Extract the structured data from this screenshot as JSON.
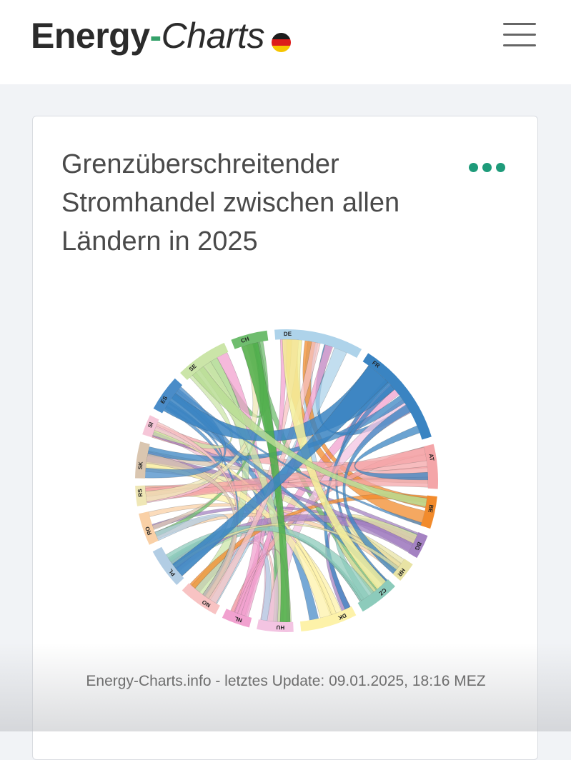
{
  "header": {
    "logo_part1": "Energy",
    "logo_dash": "-",
    "logo_part2": "Charts",
    "flag_icon": "germany-flag-icon",
    "menu_icon": "hamburger-menu-icon"
  },
  "card": {
    "title": "Grenzüberschreitender Stromhandel zwischen allen Ländern in 2025",
    "more_icon": "more-options-icon",
    "accent_color": "#1e9b7a"
  },
  "chart_data": {
    "type": "chord",
    "countries": [
      {
        "code": "DE",
        "color": "#aed3ea"
      },
      {
        "code": "FR",
        "color": "#3a84c2"
      },
      {
        "code": "AT",
        "color": "#f4a5a8"
      },
      {
        "code": "BE",
        "color": "#f28b2c"
      },
      {
        "code": "BG",
        "color": "#a482c2"
      },
      {
        "code": "HR",
        "color": "#e8e3a4"
      },
      {
        "code": "CZ",
        "color": "#8ccbbb"
      },
      {
        "code": "DK",
        "color": "#fdf2a9"
      },
      {
        "code": "HU",
        "color": "#f3c4e2"
      },
      {
        "code": "NL",
        "color": "#f1a1cf"
      },
      {
        "code": "NO",
        "color": "#f8c3c3"
      },
      {
        "code": "PL",
        "color": "#b2cde4"
      },
      {
        "code": "RO",
        "color": "#f9d0a6"
      },
      {
        "code": "RS",
        "color": "#efe7b6"
      },
      {
        "code": "SK",
        "color": "#dac6b0"
      },
      {
        "code": "SI",
        "color": "#f6c6d8"
      },
      {
        "code": "ES",
        "color": "#4a8cc8"
      },
      {
        "code": "SE",
        "color": "#cbe5a8"
      },
      {
        "code": "CH",
        "color": "#6fbd6e"
      }
    ]
  },
  "footer": {
    "text": "Energy-Charts.info - letztes Update: 09.01.2025, 18:16 MEZ"
  }
}
